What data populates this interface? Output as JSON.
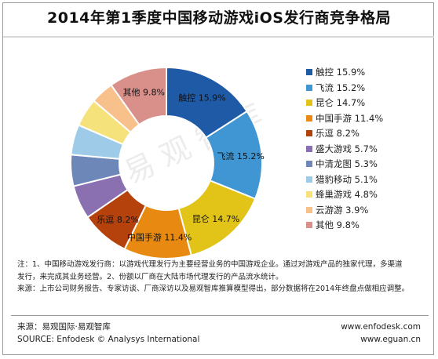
{
  "title": "2014年第1季度中国移动游戏iOS发行商竞争格局",
  "watermark": "易观智库",
  "chart_data": {
    "type": "pie",
    "title": "2014年第1季度中国移动游戏iOS发行商竞争格局",
    "donut": true,
    "legend_position": "right",
    "slices": [
      {
        "label": "触控",
        "value": 15.9,
        "display": "15.9%",
        "color": "#1f5aa6"
      },
      {
        "label": "飞流",
        "value": 15.2,
        "display": "15.2%",
        "color": "#3f96d2"
      },
      {
        "label": "昆仑",
        "value": 14.7,
        "display": "14.7%",
        "color": "#e2c418"
      },
      {
        "label": "中国手游",
        "value": 11.4,
        "display": "11.4%",
        "color": "#e88a12"
      },
      {
        "label": "乐逗",
        "value": 8.2,
        "display": "8.2%",
        "color": "#b5420c"
      },
      {
        "label": "盛大游戏",
        "value": 5.7,
        "display": "5.7%",
        "color": "#8a6fb1"
      },
      {
        "label": "中清龙图",
        "value": 5.3,
        "display": "5.3%",
        "color": "#6d87b8"
      },
      {
        "label": "猎豹移动",
        "value": 5.1,
        "display": "5.1%",
        "color": "#9dcbe8"
      },
      {
        "label": "蜂巢游戏",
        "value": 4.8,
        "display": "4.8%",
        "color": "#f5e27a"
      },
      {
        "label": "云游游",
        "value": 3.9,
        "display": "3.9%",
        "color": "#f8c08a"
      },
      {
        "label": "其他",
        "value": 9.8,
        "display": "9.8%",
        "color": "#d98f8a"
      }
    ]
  },
  "notes": [
    "注：1、中国移动游戏发行商：以游戏代理发行为主要经营业务的中国游戏企业。通过对游戏产品的独家代理，多渠道发行，来完成其业务经营。2、份额以厂商在大陆市场代理发行的产品流水统计。",
    "来源：上市公司财务报告、专家访谈、厂商深访以及易观智库推算模型得出，部分数据将在2014年终盘点做相应调整。"
  ],
  "source": {
    "cn": "来源：易观国际·易观智库",
    "en": "SOURCE: Enfodesk © Analysys International"
  },
  "urls": {
    "u1": "www.enfodesk.com",
    "u2": "www.eguan.cn"
  }
}
